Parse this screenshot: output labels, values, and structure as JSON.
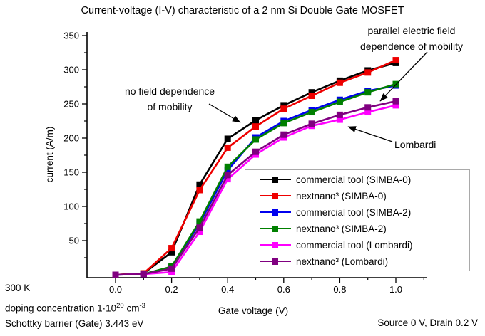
{
  "title": "Current-voltage (I-V) characteristic of a 2 nm Si Double Gate MOSFET",
  "chart_data": {
    "type": "line",
    "title": "Current-voltage (I-V) characteristic of a 2 nm Si Double Gate MOSFET",
    "xlabel": "Gate voltage (V)",
    "ylabel": "current (A/m)",
    "xlim": [
      -0.1,
      1.1
    ],
    "ylim": [
      0,
      350
    ],
    "grid": false,
    "legend_position": "lower right",
    "x": [
      0.0,
      0.1,
      0.2,
      0.3,
      0.4,
      0.5,
      0.6,
      0.7,
      0.8,
      0.9,
      1.0
    ],
    "series": [
      {
        "name": "commercial tool (SIMBA-0)",
        "color": "#000000",
        "values": [
          0,
          2,
          33,
          132,
          199,
          226,
          248,
          267,
          284,
          299,
          310
        ]
      },
      {
        "name": "nextnano³ (SIMBA-0)",
        "color": "#ee0000",
        "values": [
          0,
          2,
          39,
          124,
          186,
          217,
          243,
          262,
          281,
          296,
          314
        ]
      },
      {
        "name": "commercial tool (SIMBA-2)",
        "color": "#0000ee",
        "values": [
          0,
          1,
          11,
          75,
          153,
          201,
          225,
          241,
          256,
          269,
          277
        ]
      },
      {
        "name": "nextnano³ (SIMBA-2)",
        "color": "#008000",
        "values": [
          0,
          1,
          12,
          78,
          158,
          198,
          222,
          238,
          253,
          267,
          279
        ]
      },
      {
        "name": "commercial tool (Lombardi)",
        "color": "#ff00ff",
        "values": [
          0,
          1,
          4,
          63,
          140,
          176,
          201,
          218,
          227,
          238,
          248
        ]
      },
      {
        "name": "nextnano³ (Lombardi)",
        "color": "#800080",
        "values": [
          0,
          1,
          9,
          69,
          146,
          180,
          205,
          221,
          234,
          245,
          254
        ]
      }
    ],
    "x_ticks_major": [
      0.0,
      0.2,
      0.4,
      0.6,
      0.8,
      1.0
    ],
    "x_ticks_minor": [
      0.1,
      0.3,
      0.5,
      0.7,
      0.9,
      1.1
    ],
    "x_tick_labels": [
      "0.0",
      "0.2",
      "0.4",
      "0.6",
      "0.8",
      "1.0"
    ],
    "y_ticks_major": [
      50,
      100,
      150,
      200,
      250,
      300,
      350
    ],
    "y_ticks_minor": [
      25,
      75,
      125,
      175,
      225,
      275,
      325
    ],
    "y_tick_labels": [
      "50",
      "100",
      "150",
      "200",
      "250",
      "300",
      "350"
    ]
  },
  "annotations": {
    "no_field": {
      "line1": "no field dependence",
      "line2": "of mobility"
    },
    "parallel_field": {
      "line1": "parallel electric field",
      "line2": "dependence of mobility"
    },
    "lombardi": "Lombardi"
  },
  "footer": {
    "temperature": "300 K",
    "doping_prefix": "doping concentration 1·10",
    "doping_exp": "20",
    "doping_unit": "cm",
    "doping_unit_exp": "-3",
    "schottky": "Schottky barrier (Gate) 3.443 eV",
    "bias": "Source 0 V, Drain 0.2 V"
  }
}
